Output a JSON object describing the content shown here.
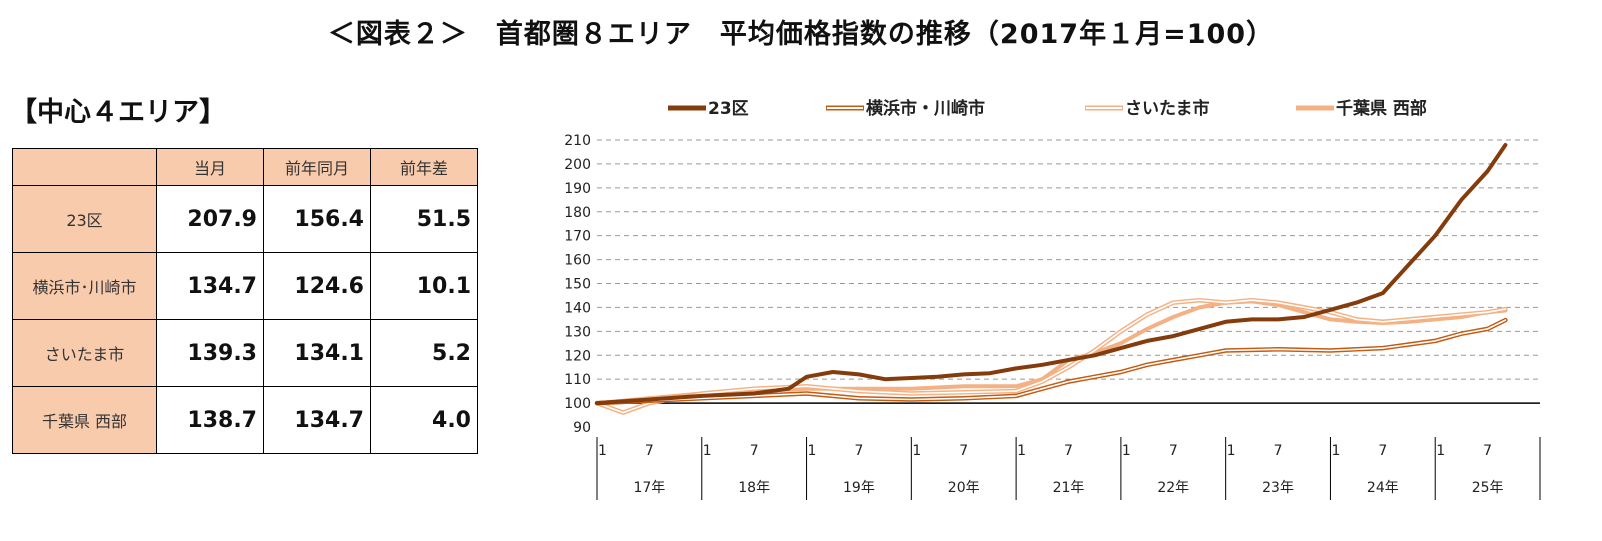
{
  "title": "＜図表２＞　首都圏８エリア　平均価格指数の推移（2017年１月=100）",
  "section_title": "【中心４エリア】",
  "table": {
    "headers": [
      "",
      "当月",
      "前年同月",
      "前年差"
    ],
    "rows": [
      {
        "name": "23区",
        "current": "207.9",
        "prev": "156.4",
        "diff": "51.5"
      },
      {
        "name": "横浜市･川崎市",
        "current": "134.7",
        "prev": "124.6",
        "diff": "10.1"
      },
      {
        "name": "さいたま市",
        "current": "139.3",
        "prev": "134.1",
        "diff": "5.2"
      },
      {
        "name": "千葉県 西部",
        "current": "138.7",
        "prev": "134.7",
        "diff": "4.0"
      }
    ]
  },
  "colors": {
    "ku23": "#843c0c",
    "yokohama": "#c55a11",
    "saitama": "#f4b183",
    "chiba": "#f4b183",
    "header_bg": "#f8cbad"
  },
  "chart_data": {
    "type": "line",
    "title": "",
    "xlabel": "",
    "ylabel": "",
    "ylim": [
      90,
      210
    ],
    "yticks": [
      90,
      100,
      110,
      120,
      130,
      140,
      150,
      160,
      170,
      180,
      190,
      200,
      210
    ],
    "grid": true,
    "legend": "top",
    "x_month_ticks": [
      "1",
      "7",
      "1",
      "7",
      "1",
      "7",
      "1",
      "7",
      "1",
      "7",
      "1",
      "7",
      "1",
      "7",
      "1",
      "7",
      "1",
      "7"
    ],
    "x_year_labels": [
      "17年",
      "18年",
      "19年",
      "20年",
      "21年",
      "22年",
      "23年",
      "24年",
      "25年"
    ],
    "x_note": "monthly, 2017-01 to 2025-09",
    "series": [
      {
        "name": "23区",
        "style": "thick",
        "color": "#843c0c",
        "values": [
          [
            2017.0,
            100
          ],
          [
            2017.5,
            101.5
          ],
          [
            2018.0,
            103
          ],
          [
            2018.5,
            104
          ],
          [
            2018.83,
            106
          ],
          [
            2019.0,
            111
          ],
          [
            2019.25,
            113
          ],
          [
            2019.5,
            112
          ],
          [
            2019.75,
            110
          ],
          [
            2020.0,
            110.5
          ],
          [
            2020.25,
            111
          ],
          [
            2020.5,
            112
          ],
          [
            2020.75,
            112.5
          ],
          [
            2021.0,
            114.5
          ],
          [
            2021.25,
            116
          ],
          [
            2021.5,
            118
          ],
          [
            2021.75,
            120
          ],
          [
            2022.0,
            123
          ],
          [
            2022.25,
            126
          ],
          [
            2022.5,
            128
          ],
          [
            2022.75,
            131
          ],
          [
            2023.0,
            134
          ],
          [
            2023.25,
            135
          ],
          [
            2023.5,
            135
          ],
          [
            2023.75,
            136
          ],
          [
            2024.0,
            139
          ],
          [
            2024.25,
            142
          ],
          [
            2024.5,
            146
          ],
          [
            2024.75,
            158
          ],
          [
            2025.0,
            170
          ],
          [
            2025.25,
            185
          ],
          [
            2025.5,
            197
          ],
          [
            2025.67,
            207.9
          ]
        ]
      },
      {
        "name": "横浜市・川崎市",
        "style": "outline",
        "color": "#c55a11",
        "values": [
          [
            2017.0,
            100
          ],
          [
            2017.5,
            101
          ],
          [
            2018.0,
            102
          ],
          [
            2018.5,
            103
          ],
          [
            2019.0,
            104
          ],
          [
            2019.5,
            102
          ],
          [
            2020.0,
            101.5
          ],
          [
            2020.5,
            102
          ],
          [
            2021.0,
            103
          ],
          [
            2021.25,
            106
          ],
          [
            2021.5,
            109
          ],
          [
            2021.75,
            111
          ],
          [
            2022.0,
            113
          ],
          [
            2022.25,
            116
          ],
          [
            2022.5,
            118
          ],
          [
            2022.75,
            120
          ],
          [
            2023.0,
            122
          ],
          [
            2023.5,
            122.5
          ],
          [
            2024.0,
            122
          ],
          [
            2024.25,
            122.5
          ],
          [
            2024.5,
            123
          ],
          [
            2024.75,
            124.5
          ],
          [
            2025.0,
            126
          ],
          [
            2025.25,
            129
          ],
          [
            2025.5,
            131
          ],
          [
            2025.67,
            134.7
          ]
        ]
      },
      {
        "name": "さいたま市",
        "style": "outline",
        "color": "#f4b183",
        "values": [
          [
            2017.0,
            100
          ],
          [
            2017.25,
            96
          ],
          [
            2017.5,
            100
          ],
          [
            2018.0,
            104
          ],
          [
            2018.5,
            106
          ],
          [
            2019.0,
            107
          ],
          [
            2019.5,
            105
          ],
          [
            2020.0,
            104
          ],
          [
            2020.5,
            104.5
          ],
          [
            2021.0,
            105
          ],
          [
            2021.25,
            109
          ],
          [
            2021.5,
            115
          ],
          [
            2021.75,
            122
          ],
          [
            2022.0,
            130
          ],
          [
            2022.25,
            137
          ],
          [
            2022.5,
            142
          ],
          [
            2022.75,
            143
          ],
          [
            2023.0,
            142
          ],
          [
            2023.25,
            143
          ],
          [
            2023.5,
            142
          ],
          [
            2023.75,
            140
          ],
          [
            2024.0,
            138
          ],
          [
            2024.25,
            135
          ],
          [
            2024.5,
            134
          ],
          [
            2024.75,
            135
          ],
          [
            2025.0,
            136
          ],
          [
            2025.25,
            137
          ],
          [
            2025.5,
            138
          ],
          [
            2025.67,
            139.3
          ]
        ]
      },
      {
        "name": "千葉県 西部",
        "style": "thick",
        "color": "#f4b183",
        "values": [
          [
            2017.0,
            100
          ],
          [
            2017.5,
            102
          ],
          [
            2018.0,
            104
          ],
          [
            2018.5,
            105
          ],
          [
            2019.0,
            106
          ],
          [
            2019.5,
            106
          ],
          [
            2020.0,
            106
          ],
          [
            2020.5,
            107
          ],
          [
            2021.0,
            107
          ],
          [
            2021.25,
            110
          ],
          [
            2021.5,
            118
          ],
          [
            2021.75,
            121
          ],
          [
            2022.0,
            125
          ],
          [
            2022.25,
            131
          ],
          [
            2022.5,
            136
          ],
          [
            2022.75,
            140
          ],
          [
            2023.0,
            142
          ],
          [
            2023.25,
            142.5
          ],
          [
            2023.5,
            141
          ],
          [
            2023.75,
            138
          ],
          [
            2024.0,
            135
          ],
          [
            2024.25,
            134
          ],
          [
            2024.5,
            133.5
          ],
          [
            2024.75,
            134
          ],
          [
            2025.0,
            135
          ],
          [
            2025.25,
            136
          ],
          [
            2025.5,
            138
          ],
          [
            2025.67,
            138.7
          ]
        ]
      }
    ]
  }
}
